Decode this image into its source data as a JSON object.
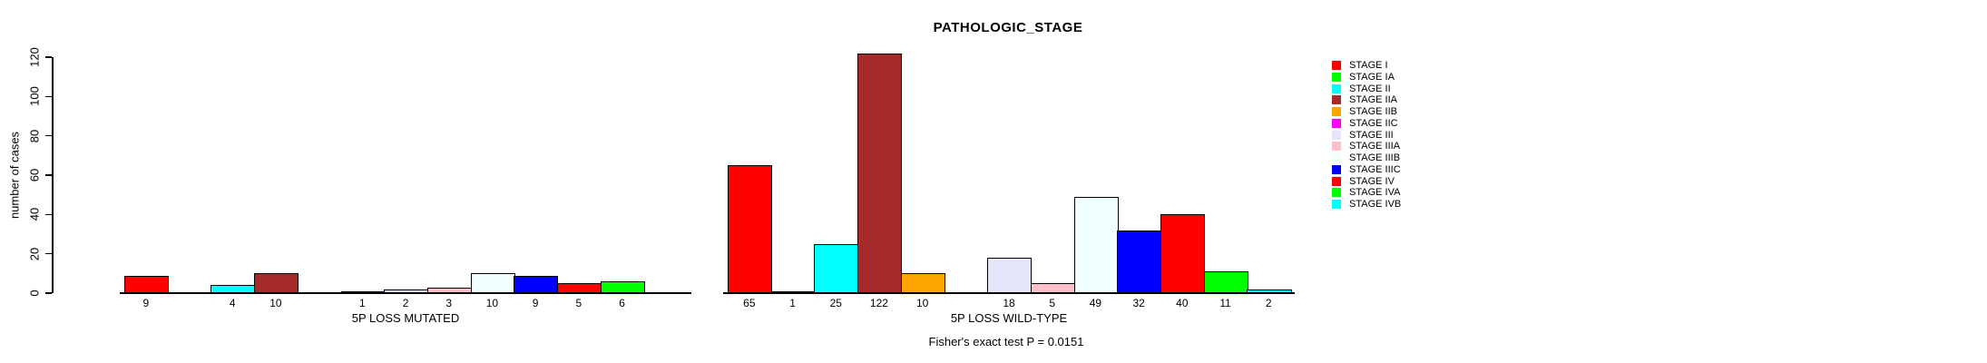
{
  "title": "PATHOLOGIC_STAGE",
  "y_axis": {
    "label": "number of cases",
    "ticks": [
      0,
      20,
      40,
      60,
      80,
      100,
      120
    ]
  },
  "annotation": "Fisher's exact test P = 0.0151",
  "legend": {
    "items": [
      {
        "label": "STAGE I",
        "color": "#FF0000"
      },
      {
        "label": "STAGE IA",
        "color": "#00FF00"
      },
      {
        "label": "STAGE II",
        "color": "#00FFFF"
      },
      {
        "label": "STAGE IIA",
        "color": "#A52A2A"
      },
      {
        "label": "STAGE IIB",
        "color": "#FFA500"
      },
      {
        "label": "STAGE IIC",
        "color": "#FF00FF"
      },
      {
        "label": "STAGE III",
        "color": "#E6E6FA"
      },
      {
        "label": "STAGE IIIA",
        "color": "#FFC0CB"
      },
      {
        "label": "STAGE IIIB",
        "color": "#F0FFFF"
      },
      {
        "label": "STAGE IIIC",
        "color": "#0000FF"
      },
      {
        "label": "STAGE IV",
        "color": "#FF0000"
      },
      {
        "label": "STAGE IVA",
        "color": "#00FF00"
      },
      {
        "label": "STAGE IVB",
        "color": "#00FFFF"
      }
    ]
  },
  "chart_data": {
    "type": "bar",
    "title": "PATHOLOGIC_STAGE",
    "ylabel": "number of cases",
    "xlabel": "",
    "ylim": [
      0,
      120
    ],
    "yticks": [
      0,
      20,
      40,
      60,
      80,
      100,
      120
    ],
    "grid": false,
    "legend_position": "right",
    "categories": [
      "STAGE I",
      "STAGE IA",
      "STAGE II",
      "STAGE IIA",
      "STAGE IIB",
      "STAGE IIC",
      "STAGE III",
      "STAGE IIIA",
      "STAGE IIIB",
      "STAGE IIIC",
      "STAGE IV",
      "STAGE IVA",
      "STAGE IVB"
    ],
    "colors": [
      "#FF0000",
      "#00FF00",
      "#00FFFF",
      "#A52A2A",
      "#FFA500",
      "#FF00FF",
      "#E6E6FA",
      "#FFC0CB",
      "#F0FFFF",
      "#0000FF",
      "#FF0000",
      "#00FF00",
      "#00FFFF"
    ],
    "series": [
      {
        "name": "5P LOSS MUTATED",
        "values": [
          9,
          0,
          4,
          10,
          0,
          1,
          2,
          3,
          10,
          9,
          5,
          6,
          0
        ]
      },
      {
        "name": "5P LOSS WILD-TYPE",
        "values": [
          65,
          1,
          25,
          122,
          10,
          0,
          18,
          5,
          49,
          32,
          40,
          11,
          2
        ]
      }
    ],
    "bar_value_labels_shown_for_nonzero_only": true,
    "annotation": "Fisher's exact test P = 0.0151"
  }
}
